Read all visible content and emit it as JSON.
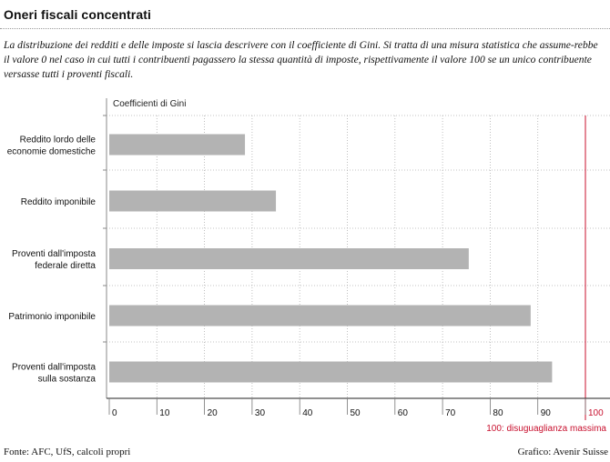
{
  "header": {
    "title": "Oneri fiscali concentrati",
    "intro": "La distribuzione dei redditi e delle imposte si lascia descrivere con il coefficiente di Gini. Si tratta di una misura statistica che assume-rebbe il valore 0 nel caso in cui tutti i contribuenti pagassero la stessa quantità di imposte, rispettivamente il valore 100 se un unico contribuente versasse tutti i proventi fiscali."
  },
  "footer": {
    "source": "Fonte: AFC, UfS, calcoli propri",
    "credit": "Grafico: Avenir Suisse"
  },
  "colors": {
    "bar": "#b3b3b3",
    "reference_line": "#c8102e",
    "grid": "#b0b0b0"
  },
  "chart_data": {
    "type": "bar",
    "orientation": "horizontal",
    "title": "Coefficienti di Gini",
    "categories": [
      [
        "Reddito lordo delle",
        "economie domestiche"
      ],
      [
        "Reddito imponibile"
      ],
      [
        "Proventi dall'imposta",
        "federale diretta"
      ],
      [
        "Patrimonio imponibile"
      ],
      [
        "Proventi dall'imposta",
        "sulla sostanza"
      ]
    ],
    "values": [
      28.5,
      35,
      75.5,
      88.5,
      93
    ],
    "xlim": [
      0,
      100
    ],
    "xticks": [
      "0",
      "10",
      "20",
      "30",
      "40",
      "50",
      "60",
      "70",
      "80",
      "90",
      "100"
    ],
    "reference": {
      "value": 100,
      "label": "100: disuguaglianza massima"
    },
    "grid": true
  }
}
